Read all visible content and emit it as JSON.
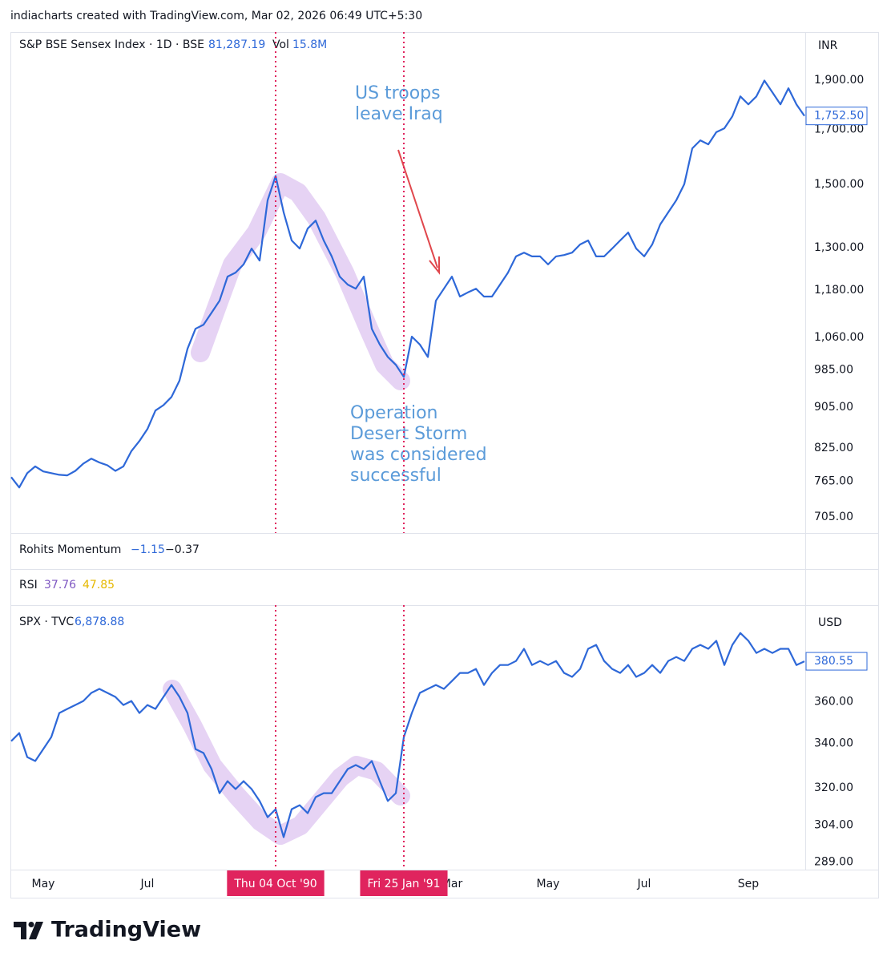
{
  "header": "indiacharts created with TradingView.com, Mar 02, 2026 06:49 UTC+5:30",
  "footer": {
    "brand": "TradingView"
  },
  "indicators": [
    {
      "name": "Rohits Momentum",
      "readings": [
        "−1.15",
        "−0.37"
      ],
      "colors": [
        "#2e68d8",
        "#131722"
      ]
    },
    {
      "name": "RSI",
      "readings": [
        "37.76",
        "47.85"
      ],
      "colors": [
        "#7e57c2",
        "#e6b800"
      ]
    }
  ],
  "chart_data": [
    {
      "type": "line",
      "legend": {
        "title": "S&P BSE Sensex Index · 1D · BSE",
        "value": "81,287.19",
        "volume_label": "Vol",
        "volume": "15.8M"
      },
      "currency": "INR",
      "log_scale": true,
      "grid": false,
      "ylim": [
        680,
        2120
      ],
      "yticks": [
        {
          "value": 705,
          "label": "705.00"
        },
        {
          "value": 765,
          "label": "765.00"
        },
        {
          "value": 825,
          "label": "825.00"
        },
        {
          "value": 905,
          "label": "905.00"
        },
        {
          "value": 985,
          "label": "985.00"
        },
        {
          "value": 1060,
          "label": "1,060.00"
        },
        {
          "value": 1180,
          "label": "1,180.00"
        },
        {
          "value": 1300,
          "label": "1,300.00"
        },
        {
          "value": 1500,
          "label": "1,500.00"
        },
        {
          "value": 1700,
          "label": "1,700.00"
        },
        {
          "value": 1900,
          "label": "1,900.00"
        }
      ],
      "series": [
        {
          "name": "S&P BSE Sensex Index",
          "color": "#2e68d8",
          "last_value_label": "1,752.50",
          "values": [
            772,
            754,
            779,
            791,
            782,
            779,
            776,
            775,
            783,
            796,
            805,
            798,
            793,
            783,
            791,
            819,
            838,
            861,
            898,
            909,
            926,
            961,
            1033,
            1081,
            1091,
            1121,
            1152,
            1217,
            1228,
            1251,
            1297,
            1262,
            1447,
            1529,
            1408,
            1321,
            1297,
            1357,
            1382,
            1321,
            1274,
            1217,
            1195,
            1184,
            1217,
            1081,
            1043,
            1014,
            996,
            969,
            1062,
            1043,
            1014,
            1152,
            1184,
            1217,
            1163,
            1174,
            1184,
            1163,
            1163,
            1195,
            1228,
            1274,
            1285,
            1274,
            1274,
            1251,
            1274,
            1278,
            1285,
            1309,
            1321,
            1274,
            1274,
            1297,
            1321,
            1345,
            1297,
            1274,
            1309,
            1370,
            1408,
            1447,
            1501,
            1628,
            1658,
            1643,
            1689,
            1704,
            1751,
            1832,
            1799,
            1832,
            1899,
            1849,
            1799,
            1866,
            1799,
            1752.5
          ]
        }
      ],
      "annotation_color": "#5b9bd9",
      "annotations": [
        [
          "US troops",
          "leave Iraq"
        ],
        [
          "Operation",
          "Desert Storm",
          "was considered",
          "successful"
        ]
      ]
    },
    {
      "type": "line",
      "legend": {
        "title": "SPX · TVC",
        "value": "6,878.88"
      },
      "currency": "USD",
      "log_scale": true,
      "grid": false,
      "ylim": [
        286,
        411
      ],
      "yticks": [
        {
          "value": 289,
          "label": "289.00"
        },
        {
          "value": 304,
          "label": "304.00"
        },
        {
          "value": 320,
          "label": "320.00"
        },
        {
          "value": 340,
          "label": "340.00"
        },
        {
          "value": 360,
          "label": "360.00"
        }
      ],
      "series": [
        {
          "name": "SPX",
          "color": "#2e68d8",
          "last_value_label": "380.55",
          "values": [
            341.1,
            344.9,
            333.7,
            331.9,
            337.4,
            343.0,
            354.5,
            356.5,
            358.4,
            360.4,
            364.4,
            366.4,
            364.4,
            362.4,
            358.4,
            360.4,
            354.5,
            358.4,
            356.5,
            362.4,
            368.4,
            362.4,
            354.5,
            337.4,
            335.6,
            328.3,
            317.6,
            322.9,
            319.4,
            322.9,
            319.4,
            314.2,
            307.3,
            310.7,
            299.0,
            310.7,
            312.4,
            309.0,
            315.9,
            317.6,
            317.6,
            322.9,
            328.3,
            330.1,
            328.3,
            331.9,
            322.9,
            314.2,
            317.6,
            343.0,
            354.5,
            364.4,
            366.4,
            368.4,
            366.4,
            370.4,
            374.5,
            374.5,
            376.6,
            368.4,
            374.5,
            378.6,
            378.6,
            380.7,
            387.1,
            378.6,
            380.7,
            378.6,
            380.7,
            374.5,
            372.5,
            376.6,
            387.1,
            389.2,
            380.7,
            376.6,
            374.5,
            378.6,
            372.5,
            374.5,
            378.6,
            374.5,
            380.7,
            382.8,
            380.7,
            387.1,
            389.2,
            387.1,
            391.4,
            378.6,
            389.2,
            395.6,
            391.4,
            384.9,
            387.1,
            384.9,
            387.1,
            387.1,
            378.6,
            380.55
          ]
        }
      ],
      "categories": [
        null,
        null,
        null,
        null,
        "May",
        null,
        null,
        null,
        null,
        null,
        null,
        null,
        null,
        null,
        null,
        null,
        null,
        "Jul",
        null,
        null,
        null,
        null,
        null,
        null,
        null,
        null,
        null,
        null,
        null,
        null,
        null,
        null,
        null,
        "Thu 04 Oct '90",
        null,
        null,
        null,
        null,
        null,
        null,
        null,
        null,
        null,
        null,
        null,
        null,
        null,
        null,
        null,
        "Fri 25 Jan '91",
        null,
        null,
        null,
        null,
        null,
        "Mar",
        null,
        null,
        null,
        null,
        null,
        null,
        null,
        null,
        null,
        null,
        null,
        "May",
        null,
        null,
        null,
        null,
        null,
        null,
        null,
        null,
        null,
        null,
        null,
        "Jul",
        null,
        null,
        null,
        null,
        null,
        null,
        null,
        null,
        null,
        null,
        null,
        null,
        "Sep",
        null,
        null,
        null,
        null,
        null,
        null,
        null
      ],
      "markers": [
        "Thu 04 Oct '90",
        "Fri 25 Jan '91"
      ],
      "marker_color": "#e0245e"
    }
  ]
}
